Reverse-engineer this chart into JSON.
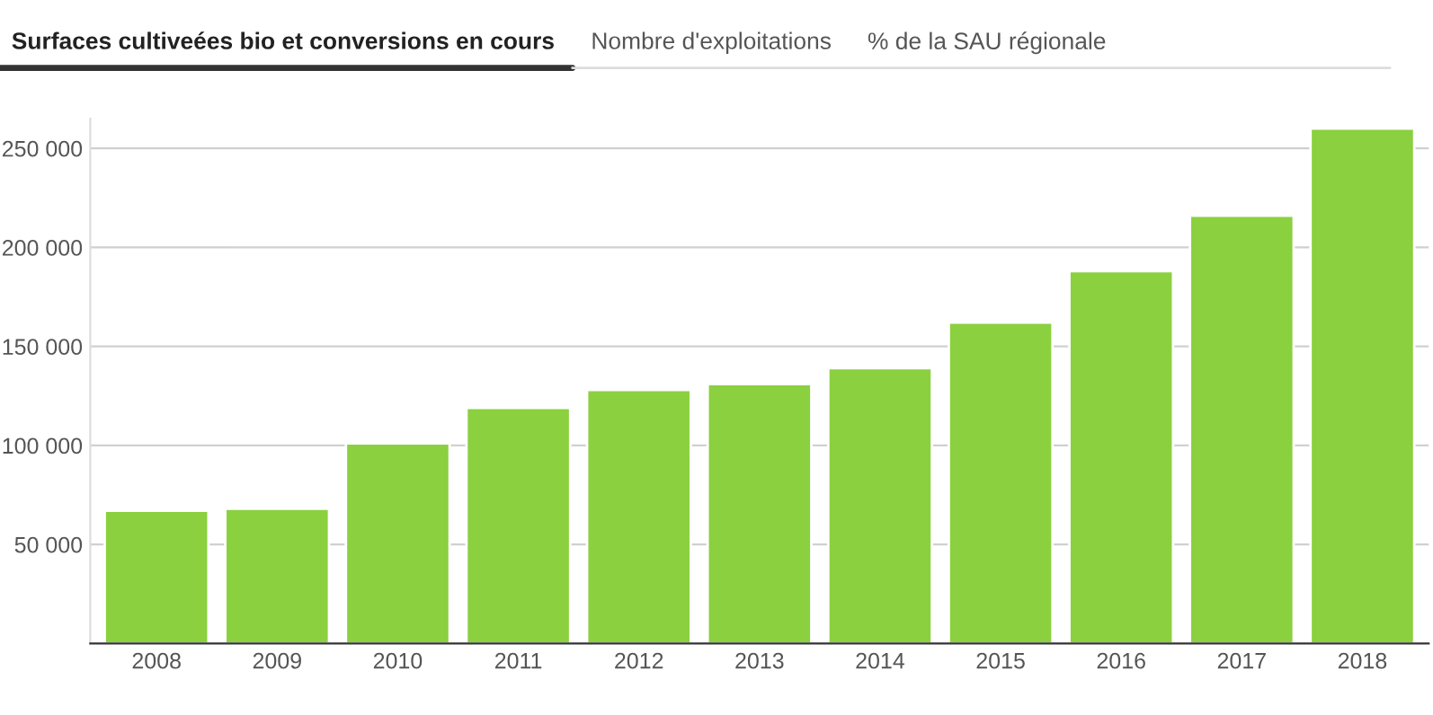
{
  "chart_data": {
    "type": "bar",
    "title": "Surfaces cultiveées bio et conversions en cours",
    "annotations": [
      "Nombre d'exploitations",
      "% de la SAU régionale"
    ],
    "categories": [
      "2008",
      "2009",
      "2010",
      "2011",
      "2012",
      "2013",
      "2014",
      "2015",
      "2016",
      "2017",
      "2018"
    ],
    "values": [
      67000,
      68000,
      101000,
      119000,
      128000,
      131000,
      139000,
      162000,
      188000,
      216000,
      260000
    ],
    "color": "#8bd03f",
    "ylim": [
      0,
      265000
    ],
    "yticks": [
      {
        "value": 50000,
        "label": "50 000"
      },
      {
        "value": 100000,
        "label": "100 000"
      },
      {
        "value": 150000,
        "label": "150 000"
      },
      {
        "value": 200000,
        "label": "200 000"
      },
      {
        "value": 250000,
        "label": "250 000"
      }
    ],
    "grid": "y",
    "legend": false
  }
}
